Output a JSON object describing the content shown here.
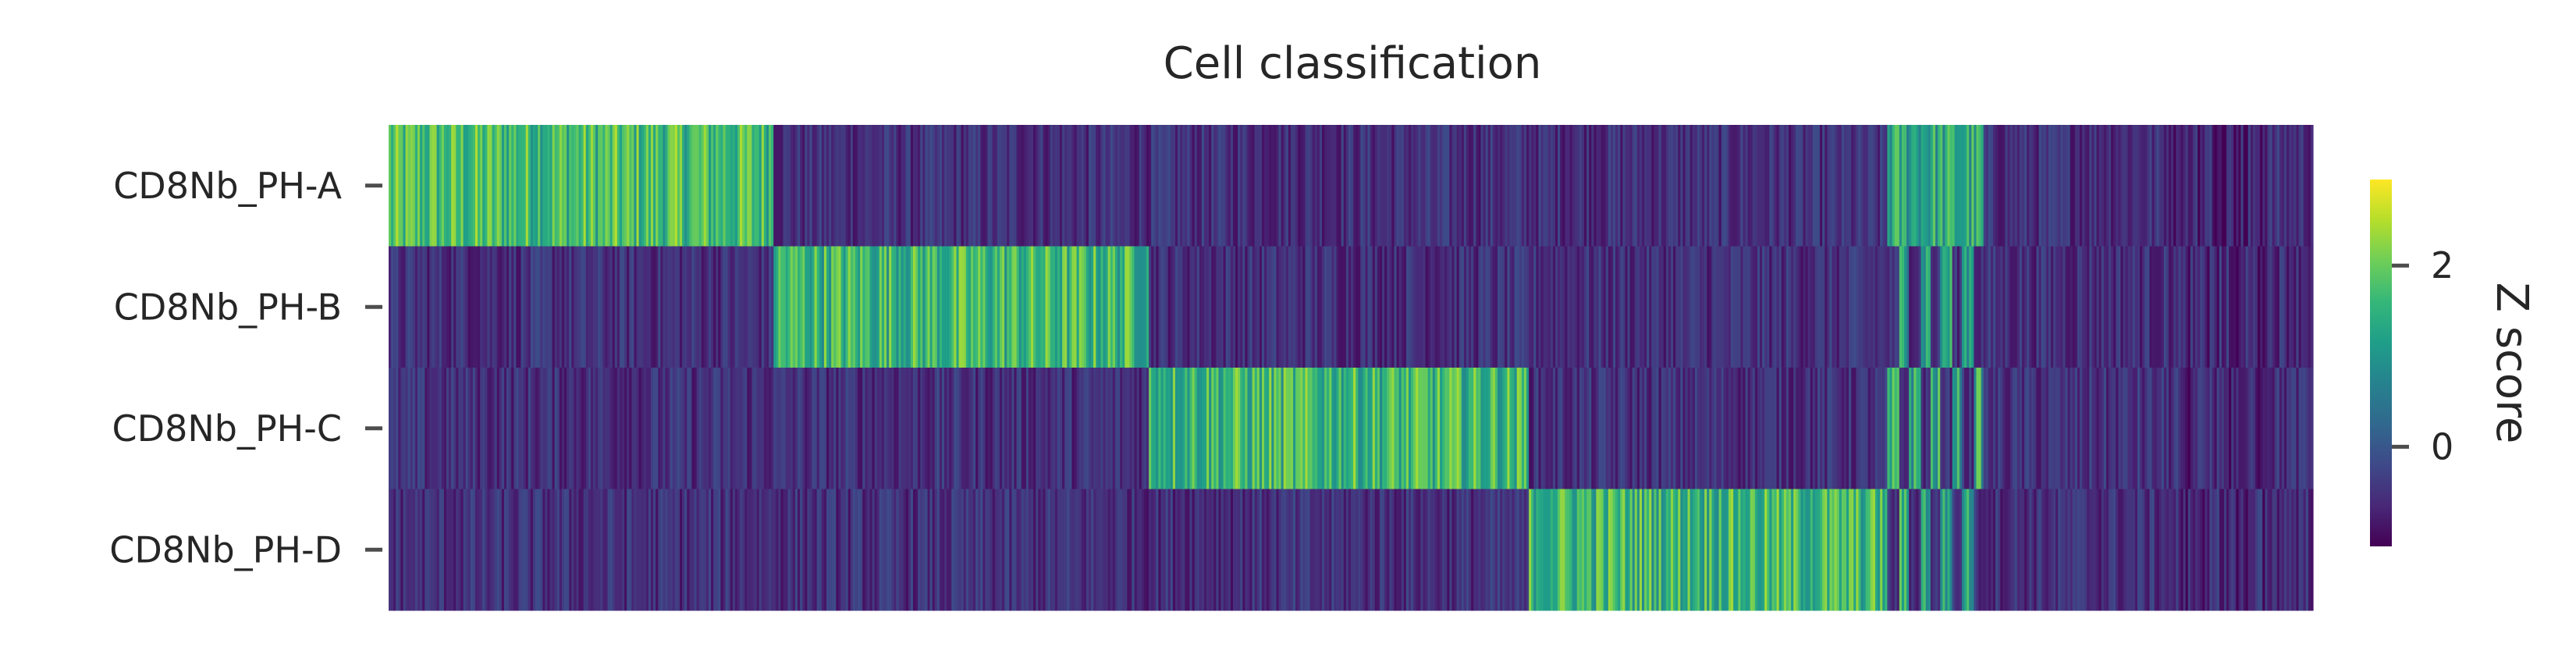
{
  "chart_data": {
    "type": "heatmap",
    "title": "Cell classification",
    "rows": [
      "CD8Nb_PH-A",
      "CD8Nb_PH-B",
      "CD8Nb_PH-C",
      "CD8Nb_PH-D"
    ],
    "xlabel": "",
    "ylabel": "",
    "colormap": "viridis",
    "colorbar": {
      "label": "Z score",
      "vmin": -1.1,
      "vmax": 2.95,
      "ticks": [
        0,
        2
      ],
      "tick_labels": [
        "0",
        "2"
      ],
      "placement": "right"
    },
    "columns_total": 1600,
    "blocks": [
      {
        "from": 0,
        "to": 320,
        "high_rows": [
          0
        ],
        "high_mean": 1.7,
        "note_split": false
      },
      {
        "from": 320,
        "to": 632,
        "high_rows": [
          1
        ],
        "high_mean": 1.6,
        "note_split": false
      },
      {
        "from": 632,
        "to": 948,
        "high_rows": [
          2
        ],
        "high_mean": 1.6,
        "note_split": false
      },
      {
        "from": 948,
        "to": 1246,
        "high_rows": [
          3
        ],
        "high_mean": 1.6,
        "note_split": false
      },
      {
        "from": 1246,
        "to": 1325,
        "high_rows": [
          0,
          1,
          2,
          3
        ],
        "high_mean": 1.3,
        "note_split": true
      },
      {
        "from": 1325,
        "to": 1600,
        "high_rows": [],
        "high_mean": 0.0,
        "note_split": false
      }
    ],
    "low_mean": -0.55,
    "grid": false,
    "legend": "none"
  },
  "colors": {
    "viridis": [
      "#440154",
      "#482878",
      "#3e4989",
      "#31688e",
      "#26828e",
      "#1f9e89",
      "#35b779",
      "#6ece58",
      "#b5de2b",
      "#fde725"
    ],
    "text": "#262626",
    "tick": "#4d4d4d"
  }
}
